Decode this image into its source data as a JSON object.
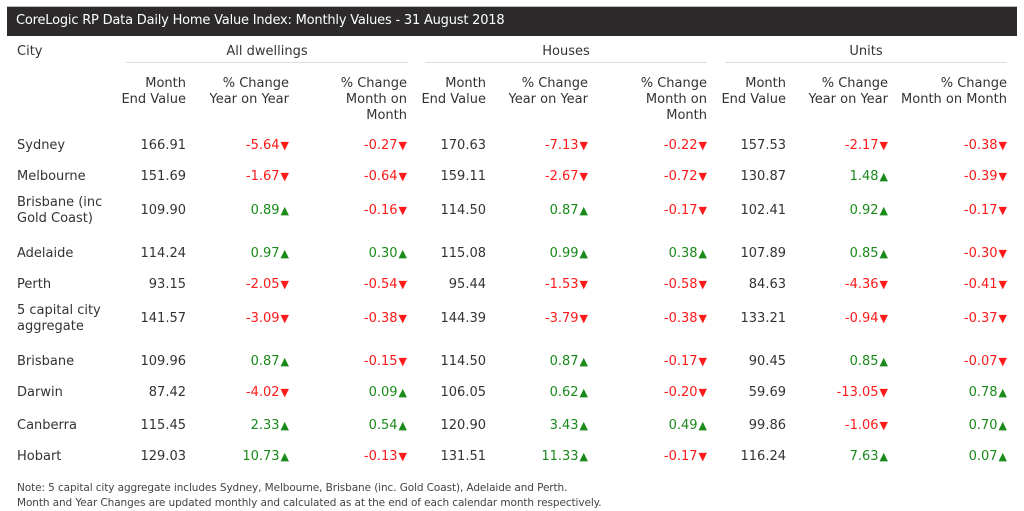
{
  "title": "CoreLogic RP Data Daily Home Value Index: Monthly Values - 31 August 2018",
  "city_header": "City",
  "groups": [
    "All dwellings",
    "Houses",
    "Units"
  ],
  "column_headers": {
    "all": [
      "Month\nEnd Value",
      "% Change\nYear on Year",
      "% Change\nMonth on\nMonth"
    ],
    "houses": [
      "Month\nEnd Value",
      "% Change\nYear on Year",
      "% Change\nMonth on\nMonth"
    ],
    "units": [
      "Month\nEnd Value",
      "% Change\nYear on Year",
      "% Change\nMonth on Month"
    ]
  },
  "colors": {
    "up": "#1a8a1a",
    "down": "#ff1a1a",
    "title_bg": "#2d2a2b"
  },
  "icons": {
    "up": "▲",
    "down": "▼"
  },
  "rows": [
    {
      "city": "Sydney",
      "values": [
        "166.91",
        "-5.64",
        "-0.27",
        "170.63",
        "-7.13",
        "-0.22",
        "157.53",
        "-2.17",
        "-0.38"
      ]
    },
    {
      "city": "Melbourne",
      "values": [
        "151.69",
        "-1.67",
        "-0.64",
        "159.11",
        "-2.67",
        "-0.72",
        "130.87",
        "1.48",
        "-0.39"
      ]
    },
    {
      "city": "Brisbane (inc\nGold Coast)",
      "values": [
        "109.90",
        "0.89",
        "-0.16",
        "114.50",
        "0.87",
        "-0.17",
        "102.41",
        "0.92",
        "-0.17"
      ]
    },
    {
      "city": "Adelaide",
      "values": [
        "114.24",
        "0.97",
        "0.30",
        "115.08",
        "0.99",
        "0.38",
        "107.89",
        "0.85",
        "-0.30"
      ]
    },
    {
      "city": "Perth",
      "values": [
        "93.15",
        "-2.05",
        "-0.54",
        "95.44",
        "-1.53",
        "-0.58",
        "84.63",
        "-4.36",
        "-0.41"
      ]
    },
    {
      "city": "5 capital city\naggregate",
      "values": [
        "141.57",
        "-3.09",
        "-0.38",
        "144.39",
        "-3.79",
        "-0.38",
        "133.21",
        "-0.94",
        "-0.37"
      ]
    },
    {
      "city": "Brisbane",
      "values": [
        "109.96",
        "0.87",
        "-0.15",
        "114.50",
        "0.87",
        "-0.17",
        "90.45",
        "0.85",
        "-0.07"
      ]
    },
    {
      "city": "Darwin",
      "values": [
        "87.42",
        "-4.02",
        "0.09",
        "106.05",
        "0.62",
        "-0.20",
        "59.69",
        "-13.05",
        "0.78"
      ]
    },
    {
      "city": "Canberra",
      "values": [
        "115.45",
        "2.33",
        "0.54",
        "120.90",
        "3.43",
        "0.49",
        "99.86",
        "-1.06",
        "0.70"
      ]
    },
    {
      "city": "Hobart",
      "values": [
        "129.03",
        "10.73",
        "-0.13",
        "131.51",
        "11.33",
        "-0.17",
        "116.24",
        "7.63",
        "0.07"
      ]
    }
  ],
  "notes": [
    "Note: 5 capital city aggregate includes Sydney, Melbourne, Brisbane (inc. Gold Coast), Adelaide and Perth.",
    "Month and Year Changes are updated monthly and calculated as at the end of each calendar month respectively."
  ]
}
